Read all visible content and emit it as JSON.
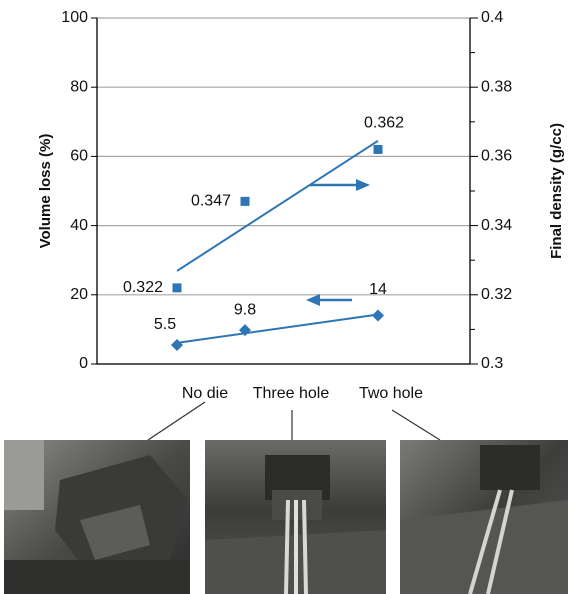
{
  "chart_data": {
    "type": "scatter",
    "categories": [
      "No die",
      "Three hole",
      "Two hole"
    ],
    "y_label": "Volume loss (%)",
    "y2_label": "Final density (g/cc)",
    "ylim": [
      0,
      100
    ],
    "yticks": [
      0,
      20,
      40,
      60,
      80,
      100
    ],
    "y2lim": [
      0.3,
      0.4
    ],
    "y2ticks": [
      0.3,
      0.32,
      0.34,
      0.36,
      0.38,
      0.4
    ],
    "y2minor_ticks": [
      0.31,
      0.33,
      0.35,
      0.37,
      0.39
    ],
    "grid": true,
    "trendline": true,
    "series": [
      {
        "color": "#2e75b6",
        "marker": "square",
        "axis": "y2",
        "values": [
          0.322,
          0.347,
          0.362
        ]
      },
      {
        "color": "#2e75b6",
        "marker": "diamond",
        "axis": "y",
        "values": [
          5.5,
          9.8,
          14
        ]
      }
    ]
  }
}
